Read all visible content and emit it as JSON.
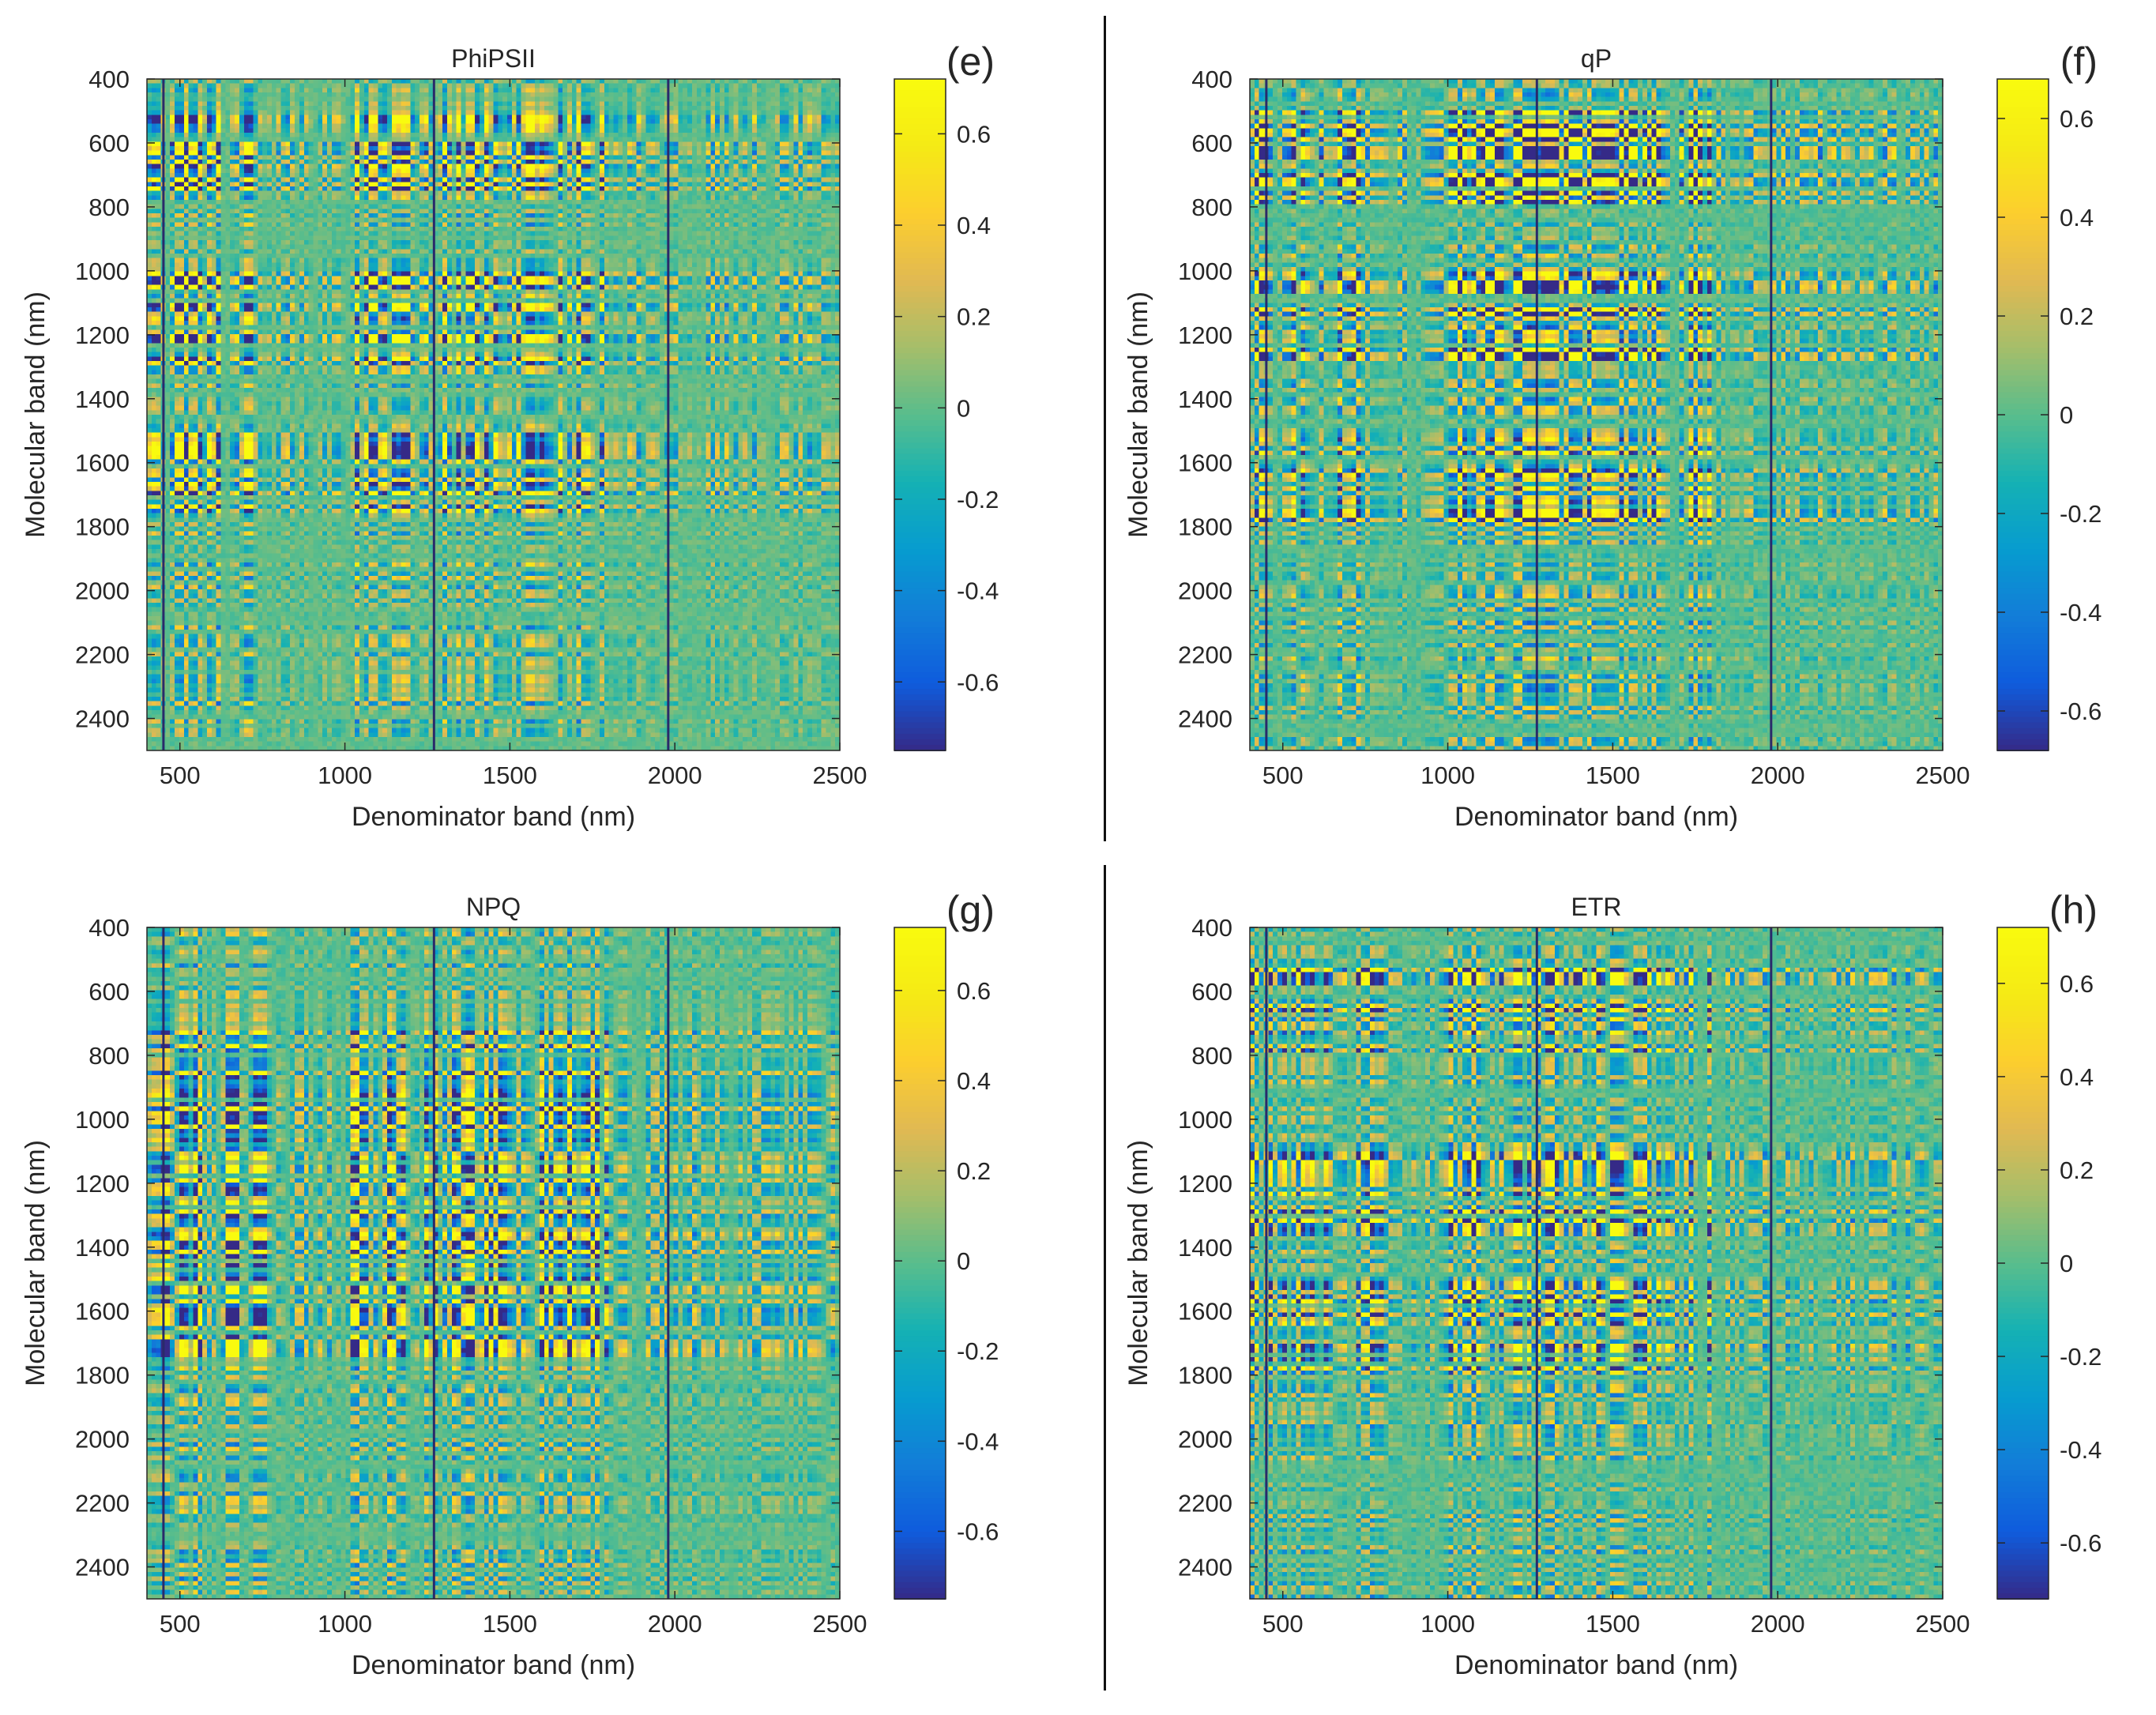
{
  "figure": {
    "divider_color": "#111111"
  },
  "chart_data": [
    {
      "type": "heatmap",
      "panel_label": "(e)",
      "title": "PhiPSII",
      "xlabel": "Denominator band (nm)",
      "ylabel": "Molecular band (nm)",
      "xlim": [
        400,
        2500
      ],
      "ylim": [
        400,
        2500
      ],
      "xticks": [
        500,
        1000,
        1500,
        2000,
        2500
      ],
      "yticks": [
        400,
        600,
        800,
        1000,
        1200,
        1400,
        1600,
        1800,
        2000,
        2200,
        2400
      ],
      "y_reversed": true,
      "colorbar": {
        "min": -0.75,
        "max": 0.72,
        "ticks": [
          -0.6,
          -0.4,
          -0.2,
          0,
          0.2,
          0.4,
          0.6
        ]
      },
      "vertical_lines_nm": [
        450,
        1270,
        1980
      ],
      "seed": 11,
      "hot_x": [
        [
          400,
          760
        ],
        [
          1000,
          1280
        ],
        [
          1300,
          1800
        ]
      ],
      "hot_y": [
        [
          500,
          800
        ],
        [
          1000,
          1300
        ],
        [
          1500,
          1800
        ]
      ]
    },
    {
      "type": "heatmap",
      "panel_label": "(f)",
      "title": "qP",
      "xlabel": "Denominator band (nm)",
      "ylabel": "Molecular band (nm)",
      "xlim": [
        400,
        2500
      ],
      "ylim": [
        400,
        2500
      ],
      "xticks": [
        500,
        1000,
        1500,
        2000,
        2500
      ],
      "yticks": [
        400,
        600,
        800,
        1000,
        1200,
        1400,
        1600,
        1800,
        2000,
        2200,
        2400
      ],
      "y_reversed": true,
      "colorbar": {
        "min": -0.68,
        "max": 0.68,
        "ticks": [
          -0.6,
          -0.4,
          -0.2,
          0,
          0.2,
          0.4,
          0.6
        ]
      },
      "vertical_lines_nm": [
        450,
        1270,
        1980
      ],
      "seed": 23,
      "hot_x": [
        [
          400,
          780
        ],
        [
          1000,
          1290
        ],
        [
          1300,
          1800
        ]
      ],
      "hot_y": [
        [
          500,
          800
        ],
        [
          1000,
          1300
        ],
        [
          1500,
          1800
        ]
      ]
    },
    {
      "type": "heatmap",
      "panel_label": "(g)",
      "title": "NPQ",
      "xlabel": "Denominator band (nm)",
      "ylabel": "Molecular band (nm)",
      "xlim": [
        400,
        2500
      ],
      "ylim": [
        400,
        2500
      ],
      "xticks": [
        500,
        1000,
        1500,
        2000,
        2500
      ],
      "yticks": [
        400,
        600,
        800,
        1000,
        1200,
        1400,
        1600,
        1800,
        2000,
        2200,
        2400
      ],
      "y_reversed": true,
      "colorbar": {
        "min": -0.75,
        "max": 0.74,
        "ticks": [
          -0.6,
          -0.4,
          -0.2,
          0,
          0.2,
          0.4,
          0.6
        ]
      },
      "vertical_lines_nm": [
        450,
        1270,
        1980
      ],
      "seed": 37,
      "hot_x": [
        [
          400,
          760
        ],
        [
          1000,
          1290
        ],
        [
          1290,
          1800
        ]
      ],
      "hot_y": [
        [
          700,
          1000
        ],
        [
          1000,
          1300
        ],
        [
          1300,
          1800
        ]
      ]
    },
    {
      "type": "heatmap",
      "panel_label": "(h)",
      "title": "ETR",
      "xlabel": "Denominator band (nm)",
      "ylabel": "Molecular band (nm)",
      "xlim": [
        400,
        2500
      ],
      "ylim": [
        400,
        2500
      ],
      "xticks": [
        500,
        1000,
        1500,
        2000,
        2500
      ],
      "yticks": [
        400,
        600,
        800,
        1000,
        1200,
        1400,
        1600,
        1800,
        2000,
        2200,
        2400
      ],
      "y_reversed": true,
      "colorbar": {
        "min": -0.72,
        "max": 0.72,
        "ticks": [
          -0.6,
          -0.4,
          -0.2,
          0,
          0.2,
          0.4,
          0.6
        ]
      },
      "vertical_lines_nm": [
        450,
        1270,
        1980
      ],
      "seed": 53,
      "hot_x": [
        [
          400,
          800
        ],
        [
          1000,
          1290
        ],
        [
          1300,
          1800
        ]
      ],
      "hot_y": [
        [
          500,
          800
        ],
        [
          1100,
          1400
        ],
        [
          1500,
          1800
        ]
      ]
    }
  ]
}
